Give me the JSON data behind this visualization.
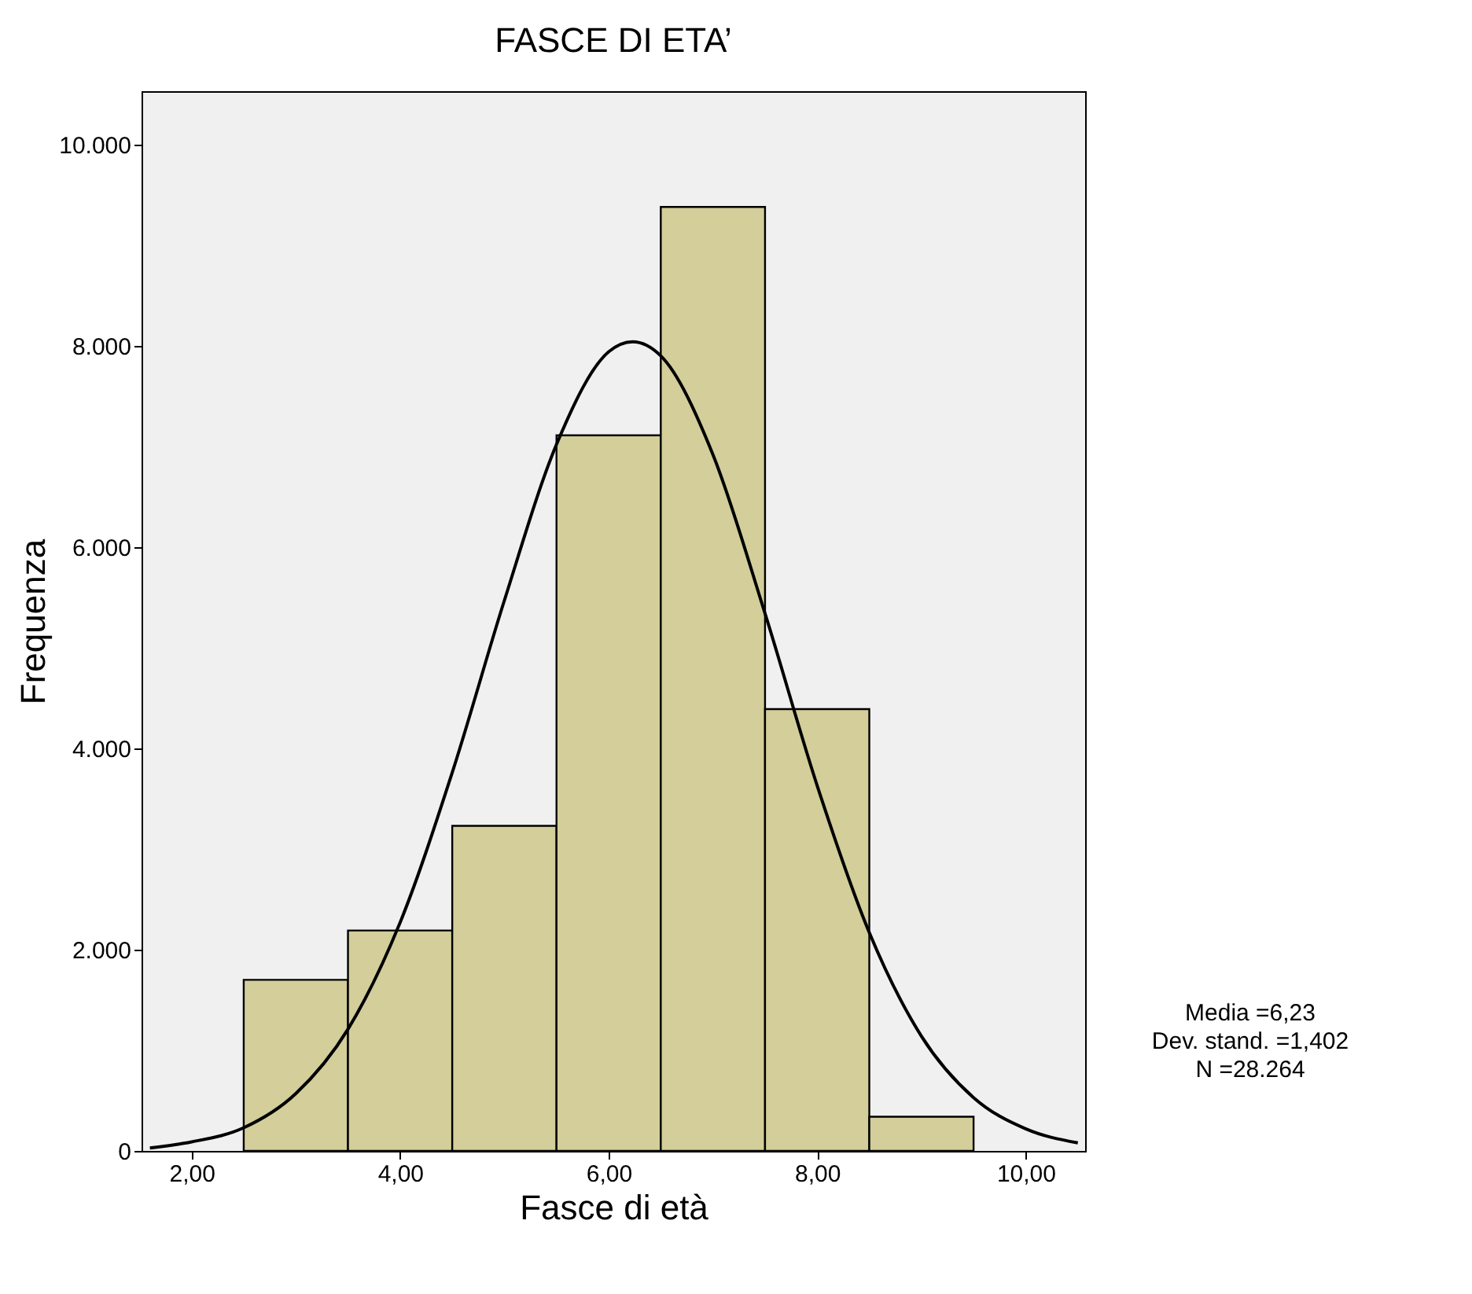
{
  "chart_data": {
    "type": "histogram",
    "title": "FASCE DI ETA’",
    "xlabel": "Fasce di età",
    "ylabel": "Frequenza",
    "bins": [
      2.5,
      3.5,
      4.5,
      5.5,
      6.5,
      7.5,
      8.5,
      9.5
    ],
    "values": [
      1700,
      2190,
      3230,
      7110,
      9380,
      4390,
      340
    ],
    "color": "#d3ce9a",
    "series": [
      {
        "type": "line",
        "color": "#000000",
        "x": [
          1.6,
          2.0,
          2.5,
          3.0,
          3.5,
          4.0,
          4.5,
          5.0,
          5.5,
          6.0,
          6.23,
          6.5,
          7.0,
          7.5,
          8.0,
          8.5,
          9.0,
          9.5,
          10.0,
          10.5
        ],
        "values": [
          30,
          90,
          230,
          570,
          1210,
          2270,
          3760,
          5470,
          7020,
          7940,
          8040,
          7900,
          6920,
          5340,
          3630,
          2170,
          1140,
          530,
          220,
          80
        ]
      }
    ],
    "xlim": [
      1.52,
      10.57
    ],
    "ylim": [
      0,
      10530
    ],
    "xticks": [
      {
        "value": 2,
        "label": "2,00"
      },
      {
        "value": 4,
        "label": "4,00"
      },
      {
        "value": 6,
        "label": "6,00"
      },
      {
        "value": 8,
        "label": "8,00"
      },
      {
        "value": 10,
        "label": "10,00"
      }
    ],
    "yticks": [
      0,
      {
        "value": 2000,
        "label": "2.000"
      },
      {
        "value": 4000,
        "label": "4.000"
      },
      {
        "value": 6000,
        "label": "6.000"
      },
      {
        "value": 8000,
        "label": "8.000"
      },
      {
        "value": 10000,
        "label": "10.000"
      }
    ],
    "annotations": [
      "Media =6,23",
      "Dev. stand. =1,402",
      "N =28.264"
    ],
    "grid": false
  }
}
